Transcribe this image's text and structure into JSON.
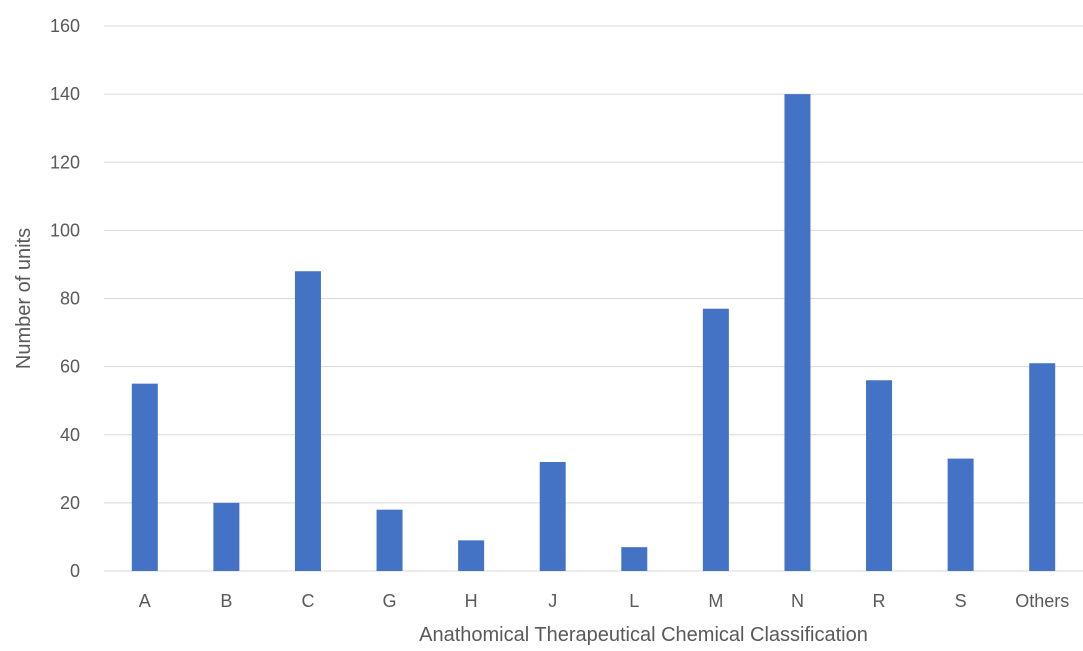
{
  "chart_data": {
    "type": "bar",
    "title": "",
    "xlabel": "Anathomical Therapeutical Chemical Classification",
    "ylabel": "Number of units",
    "categories": [
      "A",
      "B",
      "C",
      "G",
      "H",
      "J",
      "L",
      "M",
      "N",
      "R",
      "S",
      "Others"
    ],
    "values": [
      55,
      20,
      88,
      18,
      9,
      32,
      7,
      77,
      140,
      56,
      33,
      61
    ],
    "ylim": [
      0,
      160
    ],
    "yticks": [
      0,
      20,
      40,
      60,
      80,
      100,
      120,
      140,
      160
    ],
    "grid": true,
    "legend": "none",
    "bar_color": "#4472C4",
    "grid_color": "#D9D9D9",
    "text_color": "#595959"
  }
}
